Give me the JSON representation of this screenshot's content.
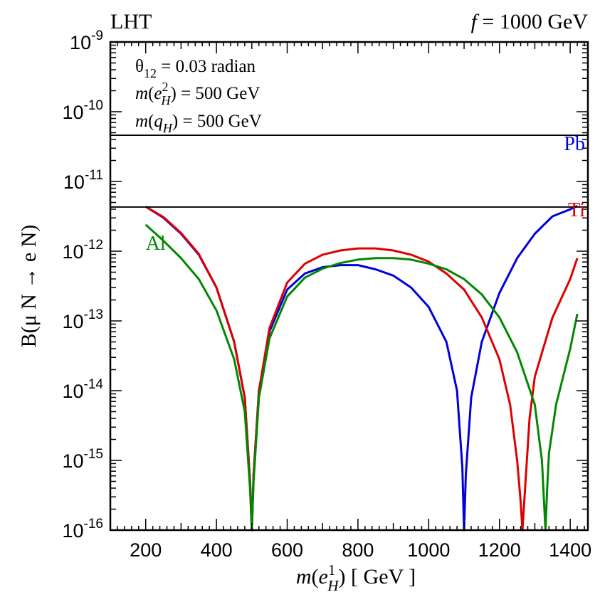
{
  "chart_data": {
    "type": "line",
    "title_left": "LHT",
    "title_right": {
      "var": "f",
      "rest": " = 1000 GeV"
    },
    "xlabel": {
      "pre": "m(e",
      "sup": "1",
      "sub": "H",
      "post": ") [ GeV ]"
    },
    "ylabel": "B(μ N → e N)",
    "xlim": [
      100,
      1450
    ],
    "ylim_log10": [
      -16,
      -9
    ],
    "y_scale": "log",
    "x_ticks": [
      200,
      400,
      600,
      800,
      1000,
      1200,
      1400
    ],
    "x_tick_labels": [
      "200",
      "400",
      "600",
      "800",
      "1000",
      "1200",
      "1400"
    ],
    "y_tick_exponents": [
      -16,
      -15,
      -14,
      -13,
      -12,
      -11,
      -10,
      -9
    ],
    "y_tick_base": "10",
    "y_tick_labels": [
      "-16",
      "-15",
      "-14",
      "-13",
      "-12",
      "-11",
      "-10",
      "-9"
    ],
    "grid": false,
    "parameters": [
      {
        "pre": "θ",
        "sub": "12",
        "post": " = 0.03 radian"
      },
      {
        "pre": "m(e",
        "sup": "2",
        "sub": "H",
        "post": ") = 500 GeV"
      },
      {
        "pre": "m(q",
        "sub": "H",
        "post": ") = 500 GeV"
      }
    ],
    "horizontal_lines": [
      4.6e-11,
      4.3e-12
    ],
    "series_labels": [
      {
        "name": "Pb",
        "color": "#0000dd",
        "anchor_x": 1420,
        "anchor_log10y": -10.55
      },
      {
        "name": "Ti",
        "color": "#dd0000",
        "anchor_x": 1420,
        "anchor_log10y": -11.5
      },
      {
        "name": "Al",
        "color": "#008800",
        "anchor_x": 200,
        "anchor_log10y": -11.98
      }
    ],
    "series": [
      {
        "name": "Pb",
        "color": "#0000dd",
        "x": [
          200,
          250,
          300,
          350,
          400,
          450,
          480,
          495,
          500,
          505,
          520,
          550,
          600,
          650,
          700,
          750,
          800,
          850,
          900,
          950,
          1000,
          1050,
          1080,
          1095,
          1100,
          1105,
          1120,
          1150,
          1200,
          1250,
          1300,
          1350,
          1400,
          1420
        ],
        "log10": [
          -11.36,
          -11.52,
          -11.75,
          -12.05,
          -12.52,
          -13.3,
          -14.1,
          -15.3,
          -16.0,
          -15.2,
          -14.0,
          -13.15,
          -12.55,
          -12.32,
          -12.23,
          -12.2,
          -12.2,
          -12.26,
          -12.35,
          -12.52,
          -12.8,
          -13.3,
          -14.0,
          -15.1,
          -16.0,
          -15.2,
          -14.1,
          -13.3,
          -12.6,
          -12.1,
          -11.75,
          -11.5,
          -11.4,
          -11.35
        ]
      },
      {
        "name": "Ti",
        "color": "#dd0000",
        "x": [
          200,
          250,
          300,
          350,
          400,
          450,
          480,
          495,
          500,
          505,
          520,
          550,
          600,
          650,
          700,
          750,
          800,
          850,
          900,
          950,
          1000,
          1050,
          1100,
          1150,
          1200,
          1230,
          1250,
          1260,
          1265,
          1270,
          1285,
          1300,
          1350,
          1400,
          1420
        ],
        "log10": [
          -11.36,
          -11.51,
          -11.74,
          -12.04,
          -12.52,
          -13.3,
          -14.1,
          -15.3,
          -16.0,
          -15.2,
          -14.0,
          -13.1,
          -12.45,
          -12.18,
          -12.05,
          -11.99,
          -11.96,
          -11.96,
          -11.99,
          -12.05,
          -12.15,
          -12.32,
          -12.55,
          -12.95,
          -13.55,
          -14.2,
          -15.0,
          -15.6,
          -16.0,
          -15.6,
          -14.4,
          -13.8,
          -12.95,
          -12.4,
          -12.1
        ]
      },
      {
        "name": "Al",
        "color": "#008800",
        "x": [
          200,
          250,
          300,
          350,
          400,
          450,
          480,
          495,
          500,
          505,
          520,
          550,
          600,
          650,
          700,
          750,
          800,
          850,
          900,
          950,
          1000,
          1050,
          1100,
          1150,
          1200,
          1250,
          1300,
          1320,
          1330,
          1335,
          1340,
          1360,
          1400,
          1420
        ],
        "log10": [
          -11.62,
          -11.85,
          -12.1,
          -12.4,
          -12.85,
          -13.55,
          -14.3,
          -15.4,
          -16.0,
          -15.3,
          -14.1,
          -13.25,
          -12.65,
          -12.38,
          -12.25,
          -12.17,
          -12.12,
          -12.1,
          -12.1,
          -12.12,
          -12.18,
          -12.26,
          -12.4,
          -12.62,
          -12.95,
          -13.45,
          -14.2,
          -15.0,
          -16.0,
          -15.4,
          -14.9,
          -14.2,
          -13.4,
          -12.9
        ]
      }
    ]
  }
}
